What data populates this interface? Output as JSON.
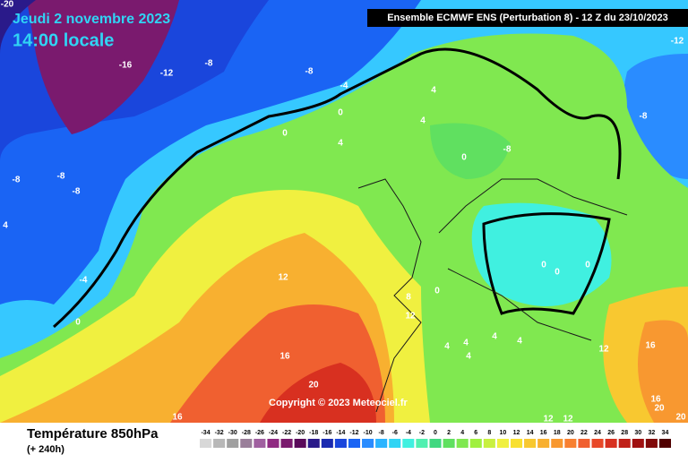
{
  "header": {
    "date": "Jeudi 2 novembre 2023",
    "time": "14:00 locale",
    "run": "Ensemble ECMWF ENS  (Perturbation 8)  -  12 Z du 23/10/2023"
  },
  "copyright": "Copyright © 2023 Meteociel.fr",
  "footer": {
    "title": "Température 850hPa",
    "subtitle": "(+ 240h)"
  },
  "scale": {
    "labels": [
      -34,
      -32,
      -30,
      -28,
      -26,
      -24,
      -22,
      -20,
      -18,
      -16,
      -14,
      -12,
      -10,
      -8,
      -6,
      -4,
      -2,
      0,
      2,
      4,
      6,
      8,
      10,
      12,
      14,
      16,
      18,
      20,
      22,
      24,
      26,
      28,
      30,
      32,
      34
    ],
    "colors": [
      "#d8d8d8",
      "#b8b8b8",
      "#a0a0a0",
      "#9a7f9a",
      "#a060a0",
      "#902a82",
      "#7a1a6e",
      "#5a0a5a",
      "#2a1a8a",
      "#1a2ab0",
      "#1a46dc",
      "#1a64f4",
      "#2a8cff",
      "#2ab4ff",
      "#30d4f4",
      "#40f0e0",
      "#50f0b0",
      "#40d880",
      "#60e060",
      "#80e850",
      "#a0f040",
      "#c8f040",
      "#f0f040",
      "#f8e030",
      "#f8c830",
      "#f8b030",
      "#f89830",
      "#f88030",
      "#f06030",
      "#e84828",
      "#d83020",
      "#c02018",
      "#a01010",
      "#800808",
      "#500000"
    ]
  },
  "contour_labels": [
    "-20",
    "-16",
    "-12",
    "-8",
    "-8",
    "-4",
    "0",
    "4",
    "4",
    "0",
    "4",
    "-8",
    "-8",
    "-8",
    "4",
    "-4",
    "0",
    "12",
    "16",
    "20",
    "-8",
    "0",
    "-8",
    "-12",
    "8",
    "0",
    "12",
    "0",
    "0",
    "0",
    "4",
    "4",
    "4",
    "4",
    "4",
    "12",
    "16",
    "12",
    "12",
    "16",
    "16",
    "20",
    "20"
  ]
}
